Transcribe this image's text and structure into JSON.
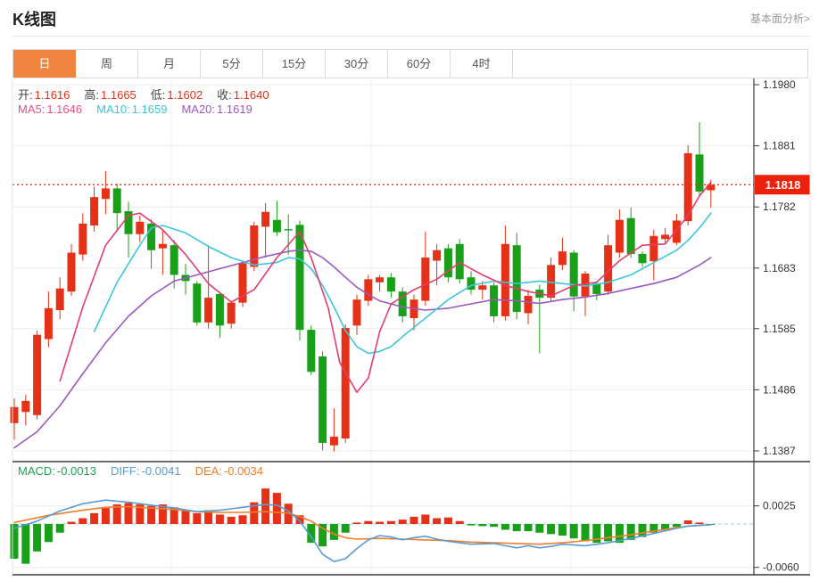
{
  "header": {
    "title": "K线图",
    "link": "基本面分析>"
  },
  "tabs": {
    "active_index": 0,
    "items": [
      {
        "label": "日",
        "name": "tab-day"
      },
      {
        "label": "周",
        "name": "tab-week"
      },
      {
        "label": "月",
        "name": "tab-month"
      },
      {
        "label": "5分",
        "name": "tab-5min"
      },
      {
        "label": "15分",
        "name": "tab-15min"
      },
      {
        "label": "30分",
        "name": "tab-30min"
      },
      {
        "label": "60分",
        "name": "tab-60min"
      },
      {
        "label": "4时",
        "name": "tab-4hour"
      }
    ]
  },
  "info": {
    "ohlc": [
      {
        "label": "开:",
        "value": "1.1616"
      },
      {
        "label": "高:",
        "value": "1.1665"
      },
      {
        "label": "低:",
        "value": "1.1602"
      },
      {
        "label": "收:",
        "value": "1.1640"
      }
    ],
    "ma": [
      {
        "label": "MA5:",
        "value": "1.1646",
        "color": "#e4537f"
      },
      {
        "label": "MA10:",
        "value": "1.1659",
        "color": "#3ec6dc"
      },
      {
        "label": "MA20:",
        "value": "1.1619",
        "color": "#9b59c0"
      }
    ],
    "macd": [
      {
        "label": "MACD:",
        "value": "-0.0013",
        "color": "#1fa353"
      },
      {
        "label": "DIFF:",
        "value": "-0.0041",
        "color": "#5a9bd4"
      },
      {
        "label": "DEA:",
        "value": "-0.0034",
        "color": "#ee7f2d"
      }
    ]
  },
  "price_marker": {
    "value": "1.1818"
  },
  "colors": {
    "up": "#e43117",
    "down": "#18a018",
    "tab_active_bg": "#f0853f",
    "ohlc_value": "#e43117",
    "marker_bg": "#ec2109",
    "dotted_line": "#f03117",
    "ma5": "#e43d6f",
    "ma10": "#3ec6dc",
    "ma20": "#9b59c0",
    "diff_line": "#5a9bd4",
    "dea_line": "#ee7f2d",
    "zero_line": "#8fd4e8",
    "grid": "#ececec",
    "vgrid": "#f0f0f0",
    "axis": "#3a3a3a",
    "axis_text": "#333"
  },
  "chart_data": {
    "type": "candlestick",
    "title": "K线图 (daily K-line with MA5/MA10/MA20 and MACD)",
    "legend_position": "top-left",
    "x_axis_labels": [],
    "main_pane": {
      "y_axis_ticks": [
        "1.1980",
        "1.1881",
        "1.1782",
        "1.1683",
        "1.1585",
        "1.1486",
        "1.1387"
      ],
      "y_range": [
        1.1387,
        1.198
      ],
      "current_price": 1.1818,
      "candles_ohlc": [
        [
          1.1432,
          1.1472,
          1.1405,
          1.1458
        ],
        [
          1.145,
          1.1478,
          1.1428,
          1.1468
        ],
        [
          1.1445,
          1.1582,
          1.1438,
          1.1575
        ],
        [
          1.1568,
          1.1645,
          1.1555,
          1.1618
        ],
        [
          1.1615,
          1.1668,
          1.16,
          1.165
        ],
        [
          1.1645,
          1.1722,
          1.1638,
          1.1708
        ],
        [
          1.1705,
          1.1772,
          1.1695,
          1.1755
        ],
        [
          1.1752,
          1.1815,
          1.1742,
          1.1798
        ],
        [
          1.1795,
          1.184,
          1.177,
          1.1812
        ],
        [
          1.1812,
          1.182,
          1.1742,
          1.1772
        ],
        [
          1.1775,
          1.179,
          1.17,
          1.1738
        ],
        [
          1.1738,
          1.1768,
          1.1725,
          1.1758
        ],
        [
          1.1755,
          1.1762,
          1.1682,
          1.1712
        ],
        [
          1.1715,
          1.1745,
          1.1672,
          1.1722
        ],
        [
          1.172,
          1.1728,
          1.165,
          1.1672
        ],
        [
          1.1672,
          1.169,
          1.164,
          1.1662
        ],
        [
          1.1658,
          1.1662,
          1.159,
          1.1595
        ],
        [
          1.1595,
          1.172,
          1.1585,
          1.1635
        ],
        [
          1.1641,
          1.1645,
          1.157,
          1.159
        ],
        [
          1.1593,
          1.163,
          1.1585,
          1.1627
        ],
        [
          1.1627,
          1.1695,
          1.162,
          1.1691
        ],
        [
          1.1685,
          1.1758,
          1.1678,
          1.1752
        ],
        [
          1.175,
          1.1788,
          1.17,
          1.1774
        ],
        [
          1.1761,
          1.1792,
          1.1735,
          1.1741
        ],
        [
          1.1746,
          1.177,
          1.1705,
          1.1744
        ],
        [
          1.1753,
          1.176,
          1.1566,
          1.1583
        ],
        [
          1.1583,
          1.159,
          1.151,
          1.1515
        ],
        [
          1.154,
          1.1548,
          1.1388,
          1.14
        ],
        [
          1.1396,
          1.1456,
          1.1386,
          1.141
        ],
        [
          1.1407,
          1.1592,
          1.14,
          1.1586
        ],
        [
          1.159,
          1.164,
          1.1575,
          1.1632
        ],
        [
          1.163,
          1.1672,
          1.1622,
          1.1665
        ],
        [
          1.166,
          1.1672,
          1.1645,
          1.1668
        ],
        [
          1.1668,
          1.1675,
          1.1635,
          1.1645
        ],
        [
          1.1645,
          1.1652,
          1.1595,
          1.1605
        ],
        [
          1.1602,
          1.164,
          1.1582,
          1.1632
        ],
        [
          1.163,
          1.1742,
          1.1622,
          1.17
        ],
        [
          1.1695,
          1.1722,
          1.1655,
          1.1712
        ],
        [
          1.1715,
          1.1722,
          1.166,
          1.1668
        ],
        [
          1.1722,
          1.173,
          1.1658,
          1.1665
        ],
        [
          1.1668,
          1.1678,
          1.164,
          1.1648
        ],
        [
          1.1648,
          1.1662,
          1.1632,
          1.1655
        ],
        [
          1.1655,
          1.166,
          1.1595,
          1.1605
        ],
        [
          1.1605,
          1.1752,
          1.1598,
          1.1722
        ],
        [
          1.172,
          1.174,
          1.16,
          1.1612
        ],
        [
          1.161,
          1.1648,
          1.1592,
          1.1638
        ],
        [
          1.1648,
          1.1656,
          1.1545,
          1.1635
        ],
        [
          1.1635,
          1.17,
          1.1628,
          1.1688
        ],
        [
          1.1688,
          1.1732,
          1.168,
          1.171
        ],
        [
          1.1708,
          1.1712,
          1.1613,
          1.1637
        ],
        [
          1.1637,
          1.1678,
          1.1605,
          1.1674
        ],
        [
          1.1658,
          1.1662,
          1.1631,
          1.1641
        ],
        [
          1.1645,
          1.1737,
          1.164,
          1.172
        ],
        [
          1.1708,
          1.1778,
          1.17,
          1.1761
        ],
        [
          1.1764,
          1.1781,
          1.17,
          1.1706
        ],
        [
          1.1706,
          1.171,
          1.1685,
          1.1691
        ],
        [
          1.1694,
          1.1745,
          1.1663,
          1.1735
        ],
        [
          1.173,
          1.1748,
          1.1722,
          1.1737
        ],
        [
          1.1724,
          1.1771,
          1.172,
          1.176
        ],
        [
          1.1759,
          1.1882,
          1.1752,
          1.1869
        ],
        [
          1.1867,
          1.1919,
          1.18,
          1.1807
        ],
        [
          1.1809,
          1.1826,
          1.1781,
          1.1818
        ]
      ],
      "ma5": [
        [
          4,
          1.15
        ],
        [
          6,
          1.162
        ],
        [
          8,
          1.172
        ],
        [
          10,
          1.1768
        ],
        [
          11,
          1.1772
        ],
        [
          13,
          1.1745
        ],
        [
          15,
          1.1705
        ],
        [
          17,
          1.1658
        ],
        [
          19,
          1.1628
        ],
        [
          21,
          1.1648
        ],
        [
          23,
          1.17
        ],
        [
          25,
          1.1742
        ],
        [
          26,
          1.17
        ],
        [
          27.5,
          1.1618
        ],
        [
          28.5,
          1.153
        ],
        [
          30,
          1.1482
        ],
        [
          31,
          1.1505
        ],
        [
          32,
          1.158
        ],
        [
          33,
          1.1625
        ],
        [
          35,
          1.1648
        ],
        [
          37,
          1.1665
        ],
        [
          39,
          1.1692
        ],
        [
          41,
          1.1672
        ],
        [
          43,
          1.1655
        ],
        [
          45,
          1.1645
        ],
        [
          47,
          1.1638
        ],
        [
          49,
          1.1655
        ],
        [
          51,
          1.166
        ],
        [
          53,
          1.1695
        ],
        [
          55,
          1.172
        ],
        [
          57,
          1.1722
        ],
        [
          59,
          1.1768
        ],
        [
          60,
          1.18
        ],
        [
          61,
          1.1822
        ]
      ],
      "ma10": [
        [
          7,
          1.158
        ],
        [
          9,
          1.166
        ],
        [
          11,
          1.172
        ],
        [
          12,
          1.1748
        ],
        [
          13,
          1.1752
        ],
        [
          15,
          1.174
        ],
        [
          17,
          1.1718
        ],
        [
          19,
          1.17
        ],
        [
          21,
          1.1688
        ],
        [
          23,
          1.1692
        ],
        [
          24,
          1.17
        ],
        [
          25,
          1.1698
        ],
        [
          26,
          1.1682
        ],
        [
          27,
          1.1655
        ],
        [
          28,
          1.162
        ],
        [
          29,
          1.1582
        ],
        [
          30,
          1.1556
        ],
        [
          31,
          1.1545
        ],
        [
          32,
          1.1548
        ],
        [
          33,
          1.1556
        ],
        [
          34,
          1.1572
        ],
        [
          36,
          1.1602
        ],
        [
          38,
          1.1632
        ],
        [
          40,
          1.1655
        ],
        [
          42,
          1.1662
        ],
        [
          44,
          1.1658
        ],
        [
          46,
          1.1662
        ],
        [
          48,
          1.1658
        ],
        [
          50,
          1.1654
        ],
        [
          52,
          1.166
        ],
        [
          54,
          1.1672
        ],
        [
          56,
          1.1692
        ],
        [
          58,
          1.1712
        ],
        [
          59,
          1.1728
        ],
        [
          60,
          1.1748
        ],
        [
          61,
          1.1772
        ]
      ],
      "ma20": [
        [
          0,
          1.1392
        ],
        [
          2,
          1.1418
        ],
        [
          4,
          1.146
        ],
        [
          6,
          1.1512
        ],
        [
          8,
          1.1562
        ],
        [
          10,
          1.1605
        ],
        [
          12,
          1.1638
        ],
        [
          14,
          1.1662
        ],
        [
          16,
          1.1672
        ],
        [
          18,
          1.1682
        ],
        [
          20,
          1.1692
        ],
        [
          22,
          1.1702
        ],
        [
          24,
          1.171
        ],
        [
          25,
          1.1712
        ],
        [
          26,
          1.171
        ],
        [
          27,
          1.17
        ],
        [
          28,
          1.1685
        ],
        [
          29,
          1.1668
        ],
        [
          30,
          1.1652
        ],
        [
          31,
          1.164
        ],
        [
          32,
          1.163
        ],
        [
          34,
          1.162
        ],
        [
          36,
          1.1615
        ],
        [
          38,
          1.1618
        ],
        [
          40,
          1.1625
        ],
        [
          42,
          1.1632
        ],
        [
          44,
          1.163
        ],
        [
          46,
          1.1626
        ],
        [
          48,
          1.1632
        ],
        [
          50,
          1.1636
        ],
        [
          52,
          1.1642
        ],
        [
          54,
          1.165
        ],
        [
          56,
          1.1658
        ],
        [
          58,
          1.1668
        ],
        [
          59,
          1.1678
        ],
        [
          60,
          1.1688
        ],
        [
          61,
          1.17
        ]
      ]
    },
    "macd_pane": {
      "y_axis_ticks": [
        "0.0025",
        "-0.0060"
      ],
      "histogram": [
        -0.0048,
        -0.0055,
        -0.0038,
        -0.0025,
        -0.0012,
        0.0003,
        0.0008,
        0.0015,
        0.0022,
        0.0027,
        0.0029,
        0.0027,
        0.0025,
        0.0027,
        0.0023,
        0.0019,
        0.0015,
        0.0019,
        0.0013,
        0.001,
        0.0012,
        0.003,
        0.0049,
        0.0043,
        0.0028,
        0.0012,
        -0.0026,
        -0.0031,
        -0.0022,
        -0.0012,
        0.0002,
        0.0004,
        0.0003,
        0.0004,
        0.0006,
        0.001,
        0.0013,
        0.0008,
        0.0009,
        0.0004,
        -0.0002,
        -0.0003,
        -0.0004,
        -0.0008,
        -0.001,
        -0.001,
        -0.0012,
        -0.0014,
        -0.0016,
        -0.002,
        -0.0024,
        -0.0026,
        -0.0024,
        -0.0026,
        -0.0022,
        -0.0018,
        -0.0012,
        -0.0008,
        -0.0004,
        0.0005,
        0.0002,
        -0.0001
      ],
      "diff": [
        [
          0,
          -0.0006
        ],
        [
          2,
          0.0004
        ],
        [
          4,
          0.0018
        ],
        [
          6,
          0.0028
        ],
        [
          8,
          0.0033
        ],
        [
          10,
          0.003
        ],
        [
          12,
          0.0026
        ],
        [
          14,
          0.0022
        ],
        [
          16,
          0.0017
        ],
        [
          18,
          0.0019
        ],
        [
          20,
          0.0023
        ],
        [
          22,
          0.0027
        ],
        [
          23,
          0.0026
        ],
        [
          24,
          0.0018
        ],
        [
          25,
          0.0004
        ],
        [
          26,
          -0.0018
        ],
        [
          27,
          -0.0042
        ],
        [
          28,
          -0.0052
        ],
        [
          29,
          -0.0048
        ],
        [
          30,
          -0.0034
        ],
        [
          31,
          -0.0022
        ],
        [
          32,
          -0.0016
        ],
        [
          33,
          -0.0018
        ],
        [
          34,
          -0.0022
        ],
        [
          35,
          -0.0019
        ],
        [
          36,
          -0.0017
        ],
        [
          37,
          -0.0021
        ],
        [
          38,
          -0.0024
        ],
        [
          40,
          -0.0028
        ],
        [
          42,
          -0.0027
        ],
        [
          43,
          -0.003
        ],
        [
          44,
          -0.0033
        ],
        [
          45,
          -0.003
        ],
        [
          46,
          -0.0033
        ],
        [
          47,
          -0.0031
        ],
        [
          48,
          -0.0028
        ],
        [
          50,
          -0.003
        ],
        [
          52,
          -0.0026
        ],
        [
          54,
          -0.002
        ],
        [
          56,
          -0.0013
        ],
        [
          58,
          -0.0006
        ],
        [
          59,
          -0.0003
        ],
        [
          60,
          -0.0002
        ],
        [
          61,
          -0.0001
        ]
      ],
      "dea": [
        [
          0,
          0.0002
        ],
        [
          3,
          0.0012
        ],
        [
          6,
          0.0019
        ],
        [
          8,
          0.0023
        ],
        [
          10,
          0.0024
        ],
        [
          12,
          0.0022
        ],
        [
          14,
          0.002
        ],
        [
          16,
          0.0017
        ],
        [
          18,
          0.0016
        ],
        [
          20,
          0.0016
        ],
        [
          22,
          0.0017
        ],
        [
          24,
          0.0015
        ],
        [
          25,
          0.001
        ],
        [
          26,
          0.0004
        ],
        [
          27,
          -0.0006
        ],
        [
          28,
          -0.0014
        ],
        [
          29,
          -0.0019
        ],
        [
          30,
          -0.0021
        ],
        [
          32,
          -0.002
        ],
        [
          34,
          -0.0021
        ],
        [
          36,
          -0.0022
        ],
        [
          38,
          -0.0023
        ],
        [
          40,
          -0.0025
        ],
        [
          42,
          -0.0026
        ],
        [
          44,
          -0.0027
        ],
        [
          46,
          -0.0028
        ],
        [
          48,
          -0.0026
        ],
        [
          50,
          -0.0023
        ],
        [
          52,
          -0.0019
        ],
        [
          54,
          -0.0015
        ],
        [
          56,
          -0.001
        ],
        [
          58,
          -0.0005
        ],
        [
          59,
          -0.0003
        ],
        [
          60,
          -0.0002
        ],
        [
          61,
          -0.0001
        ]
      ]
    }
  }
}
